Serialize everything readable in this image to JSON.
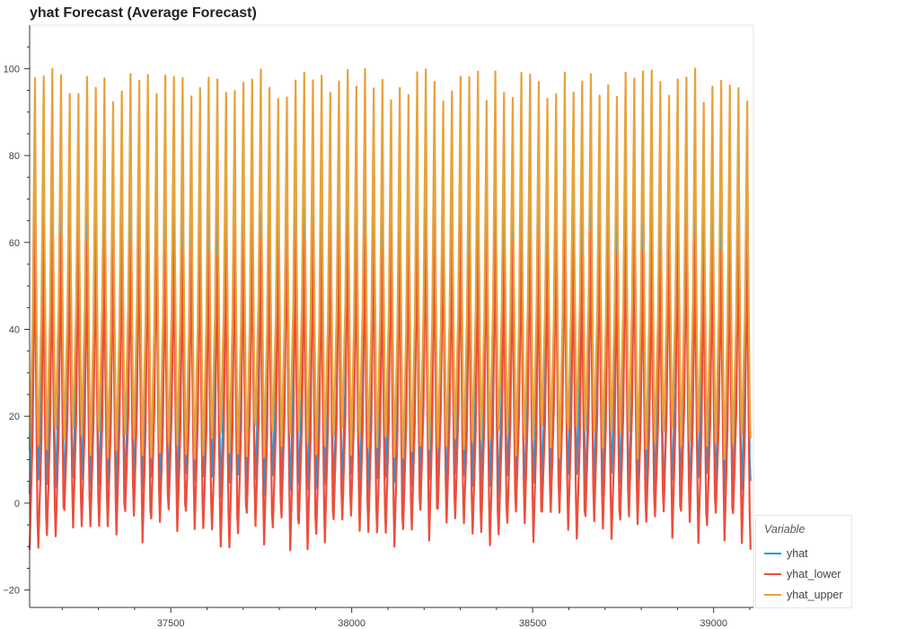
{
  "chart_data": {
    "type": "line",
    "title": "yhat Forecast (Average Forecast)",
    "xlabel": "",
    "ylabel": "",
    "xlim": [
      37110,
      39110
    ],
    "ylim": [
      -24,
      110
    ],
    "x_ticks": [
      37500,
      38000,
      38500,
      39000
    ],
    "y_ticks": [
      -20,
      0,
      20,
      40,
      60,
      80,
      100
    ],
    "grid": false,
    "legend_position": "bottom-right, outside plot",
    "legend_title": "Variable",
    "cycle_length_days": 24,
    "series": [
      {
        "name": "yhat",
        "color": "#1f9bde",
        "cycle_min_approx": 4,
        "cycle_max_approx": 70
      },
      {
        "name": "yhat_lower",
        "color": "#ec4e3c",
        "cycle_min_approx": -6,
        "cycle_max_approx": 62
      },
      {
        "name": "yhat_upper",
        "color": "#e6a33c",
        "cycle_min_approx": 14,
        "cycle_max_approx": 96
      }
    ]
  }
}
